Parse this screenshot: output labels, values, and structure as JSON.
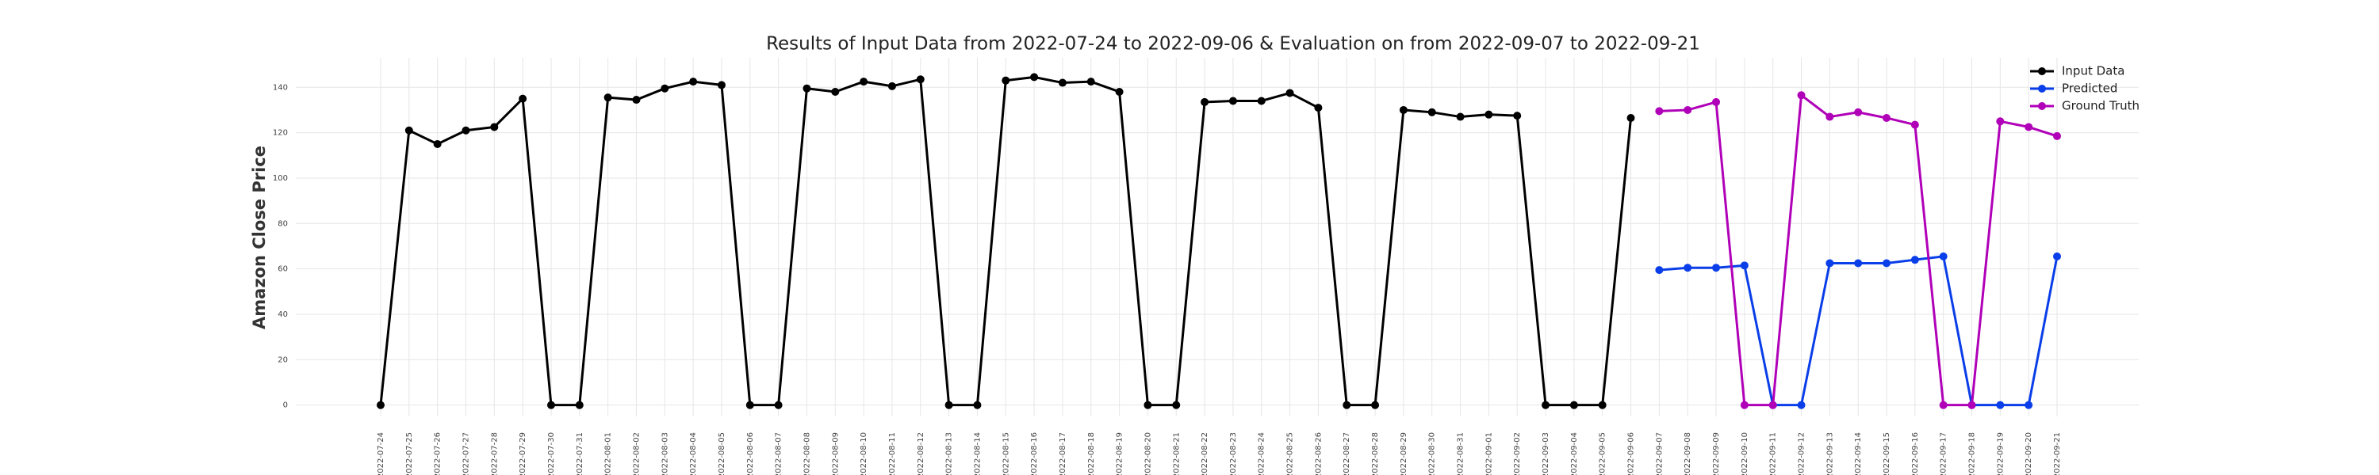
{
  "chart_data": {
    "type": "line",
    "title": "Results of Input Data from 2022-07-24 to 2022-09-06 & Evaluation on from 2022-09-07 to 2022-09-21",
    "y_label": "Amazon Close Price",
    "categories": [
      "2022-07-24",
      "2022-07-25",
      "2022-07-26",
      "2022-07-27",
      "2022-07-28",
      "2022-07-29",
      "2022-07-30",
      "2022-07-31",
      "2022-08-01",
      "2022-08-02",
      "2022-08-03",
      "2022-08-04",
      "2022-08-05",
      "2022-08-06",
      "2022-08-07",
      "2022-08-08",
      "2022-08-09",
      "2022-08-10",
      "2022-08-11",
      "2022-08-12",
      "2022-08-13",
      "2022-08-14",
      "2022-08-15",
      "2022-08-16",
      "2022-08-17",
      "2022-08-18",
      "2022-08-19",
      "2022-08-20",
      "2022-08-21",
      "2022-08-22",
      "2022-08-23",
      "2022-08-24",
      "2022-08-25",
      "2022-08-26",
      "2022-08-27",
      "2022-08-28",
      "2022-08-29",
      "2022-08-30",
      "2022-08-31",
      "2022-09-01",
      "2022-09-02",
      "2022-09-03",
      "2022-09-04",
      "2022-09-05",
      "2022-09-06",
      "2022-09-07",
      "2022-09-08",
      "2022-09-09",
      "2022-09-10",
      "2022-09-11",
      "2022-09-12",
      "2022-09-13",
      "2022-09-14",
      "2022-09-15",
      "2022-09-16",
      "2022-09-17",
      "2022-09-18",
      "2022-09-19",
      "2022-09-20",
      "2022-09-21"
    ],
    "series": [
      {
        "name": "Input Data",
        "color": "#000000",
        "values": [
          0,
          121,
          115,
          121,
          122.5,
          135,
          0,
          0,
          135.5,
          134.5,
          139.5,
          142.5,
          141,
          0,
          0,
          139.5,
          138,
          142.5,
          140.5,
          143.5,
          0,
          0,
          143,
          144.5,
          142,
          142.5,
          138,
          0,
          0,
          133.5,
          134,
          134,
          137.5,
          131,
          0,
          0,
          130,
          129,
          127,
          128,
          127.5,
          0,
          0,
          0,
          126.5,
          null,
          null,
          null,
          null,
          null,
          null,
          null,
          null,
          null,
          null,
          null,
          null,
          null,
          null,
          null
        ]
      },
      {
        "name": "Predicted",
        "color": "#0a3ee8",
        "values": [
          null,
          null,
          null,
          null,
          null,
          null,
          null,
          null,
          null,
          null,
          null,
          null,
          null,
          null,
          null,
          null,
          null,
          null,
          null,
          null,
          null,
          null,
          null,
          null,
          null,
          null,
          null,
          null,
          null,
          null,
          null,
          null,
          null,
          null,
          null,
          null,
          null,
          null,
          null,
          null,
          null,
          null,
          null,
          null,
          null,
          59.5,
          60.5,
          60.5,
          61.5,
          0,
          0,
          62.5,
          62.5,
          62.5,
          64,
          65.5,
          0,
          0,
          0,
          65.5
        ]
      },
      {
        "name": "Ground Truth",
        "color": "#b000b8",
        "values": [
          null,
          null,
          null,
          null,
          null,
          null,
          null,
          null,
          null,
          null,
          null,
          null,
          null,
          null,
          null,
          null,
          null,
          null,
          null,
          null,
          null,
          null,
          null,
          null,
          null,
          null,
          null,
          null,
          null,
          null,
          null,
          null,
          null,
          null,
          null,
          null,
          null,
          null,
          null,
          null,
          null,
          null,
          null,
          null,
          null,
          129.5,
          130,
          133.5,
          0,
          0,
          136.5,
          127,
          129,
          126.5,
          123.5,
          0,
          0,
          125,
          122.5,
          118.5
        ]
      }
    ],
    "ylim": [
      -5,
      153
    ],
    "yticks": [
      0,
      20,
      40,
      60,
      80,
      100,
      120,
      140
    ],
    "grid": true,
    "legend": "upper right"
  }
}
